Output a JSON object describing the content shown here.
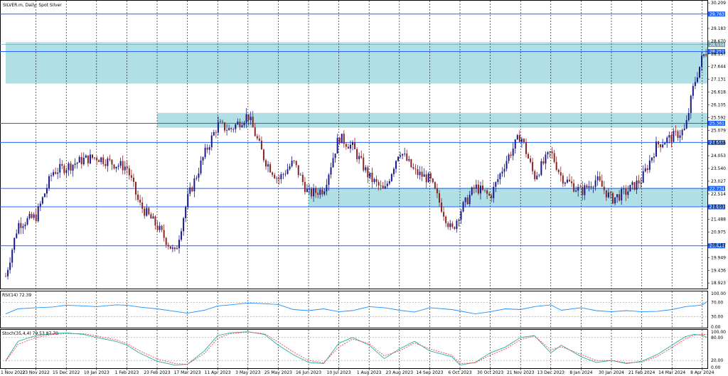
{
  "window": {
    "title": "SILVER.m, Daily:  Spot Silver"
  },
  "colors": {
    "zone": "#b0dfe6",
    "level": "#1e64ff",
    "bull": "#1a1a8c",
    "bear": "#8b2323",
    "rsi": "#1e90ff",
    "stoch_main": "#20b2aa",
    "stoch_signal": "#ff4040",
    "grid": "#000000"
  },
  "chart_data": [
    {
      "type": "candlestick",
      "title": "SILVER.m, Daily:  Spot Silver",
      "x_ticks": [
        "1 Nov 2022",
        "23 Nov 2022",
        "15 Dec 2022",
        "10 Jan 2023",
        "1 Feb 2023",
        "23 Feb 2023",
        "17 Mar 2023",
        "11 Apr 2023",
        "3 May 2023",
        "25 May 2023",
        "16 Jun 2023",
        "10 Jul 2023",
        "1 Aug 2023",
        "23 Aug 2023",
        "14 Sep 2023",
        "6 Oct 2023",
        "30 Oct 2023",
        "21 Nov 2023",
        "13 Dec 2023",
        "8 Jan 2024",
        "30 Jan 2024",
        "21 Feb 2024",
        "14 Mar 2024",
        "8 Apr 2024"
      ],
      "y_ticks": [
        30.209,
        29.183,
        28.67,
        28.157,
        27.644,
        27.131,
        26.618,
        26.105,
        25.592,
        25.079,
        24.566,
        24.053,
        23.54,
        23.027,
        22.514,
        22.001,
        21.488,
        20.975,
        20.462,
        19.949,
        19.436,
        18.923
      ],
      "ylim": [
        18.7,
        30.3
      ],
      "levels": [
        {
          "value": 29.763,
          "label": "29.763"
        },
        {
          "value": 28.251,
          "label": "28.251"
        },
        {
          "value": 25.361,
          "label": "25.361"
        },
        {
          "value": 24.588,
          "label": "24.588"
        },
        {
          "value": 22.734,
          "label": "22.734"
        },
        {
          "value": 21.993,
          "label": "21.993"
        },
        {
          "value": 20.424,
          "label": "20.424"
        }
      ],
      "current_price": {
        "value": 28.534,
        "label": "28.534"
      },
      "zones": [
        {
          "from_date": "1 Nov 2022",
          "top": 28.63,
          "bottom": 26.96
        },
        {
          "from_date": "23 Feb 2023",
          "top": 25.78,
          "bottom": 25.18
        },
        {
          "from_date": "16 Jun 2023",
          "top": 22.76,
          "bottom": 22.0
        }
      ],
      "close_path": [
        {
          "date": "1 Nov 2022",
          "close": 19.2
        },
        {
          "date": "10 Nov 2022",
          "close": 21.3
        },
        {
          "date": "23 Nov 2022",
          "close": 21.6
        },
        {
          "date": "5 Dec 2022",
          "close": 23.4
        },
        {
          "date": "15 Dec 2022",
          "close": 23.6
        },
        {
          "date": "30 Dec 2022",
          "close": 23.9
        },
        {
          "date": "10 Jan 2023",
          "close": 24.0
        },
        {
          "date": "24 Jan 2023",
          "close": 23.7
        },
        {
          "date": "1 Feb 2023",
          "close": 23.6
        },
        {
          "date": "10 Feb 2023",
          "close": 22.1
        },
        {
          "date": "23 Feb 2023",
          "close": 21.2
        },
        {
          "date": "8 Mar 2023",
          "close": 20.1
        },
        {
          "date": "17 Mar 2023",
          "close": 22.3
        },
        {
          "date": "31 Mar 2023",
          "close": 24.1
        },
        {
          "date": "11 Apr 2023",
          "close": 25.3
        },
        {
          "date": "20 Apr 2023",
          "close": 25.1
        },
        {
          "date": "3 May 2023",
          "close": 25.7
        },
        {
          "date": "15 May 2023",
          "close": 23.9
        },
        {
          "date": "25 May 2023",
          "close": 23.1
        },
        {
          "date": "5 Jun 2023",
          "close": 23.8
        },
        {
          "date": "16 Jun 2023",
          "close": 22.5
        },
        {
          "date": "28 Jun 2023",
          "close": 22.7
        },
        {
          "date": "10 Jul 2023",
          "close": 24.8
        },
        {
          "date": "20 Jul 2023",
          "close": 24.4
        },
        {
          "date": "1 Aug 2023",
          "close": 23.2
        },
        {
          "date": "12 Aug 2023",
          "close": 22.6
        },
        {
          "date": "23 Aug 2023",
          "close": 24.3
        },
        {
          "date": "3 Sep 2023",
          "close": 23.4
        },
        {
          "date": "14 Sep 2023",
          "close": 23.1
        },
        {
          "date": "30 Sep 2023",
          "close": 21.0
        },
        {
          "date": "6 Oct 2023",
          "close": 21.8
        },
        {
          "date": "18 Oct 2023",
          "close": 22.8
        },
        {
          "date": "30 Oct 2023",
          "close": 22.4
        },
        {
          "date": "10 Nov 2023",
          "close": 23.8
        },
        {
          "date": "21 Nov 2023",
          "close": 24.9
        },
        {
          "date": "1 Dec 2023",
          "close": 23.2
        },
        {
          "date": "13 Dec 2023",
          "close": 24.2
        },
        {
          "date": "22 Dec 2023",
          "close": 23.2
        },
        {
          "date": "8 Jan 2024",
          "close": 22.6
        },
        {
          "date": "19 Jan 2024",
          "close": 23.1
        },
        {
          "date": "30 Jan 2024",
          "close": 22.3
        },
        {
          "date": "10 Feb 2024",
          "close": 22.6
        },
        {
          "date": "21 Feb 2024",
          "close": 23.1
        },
        {
          "date": "3 Mar 2024",
          "close": 24.5
        },
        {
          "date": "14 Mar 2024",
          "close": 24.8
        },
        {
          "date": "25 Mar 2024",
          "close": 25.1
        },
        {
          "date": "1 Apr 2024",
          "close": 26.9
        },
        {
          "date": "8 Apr 2024",
          "close": 28.0
        },
        {
          "date": "12 Apr 2024",
          "close": 28.3
        }
      ]
    },
    {
      "type": "line",
      "title": "RSI(14) 72.39",
      "ylim": [
        0,
        100
      ],
      "y_ticks": [
        100.0,
        70.0,
        30.0,
        0.0
      ],
      "levels": [
        70,
        30
      ],
      "series": [
        {
          "values": [
            38,
            52,
            55,
            57,
            62,
            60,
            58,
            63,
            62,
            57,
            52,
            45,
            40,
            48,
            60,
            63,
            68,
            66,
            64,
            50,
            47,
            52,
            44,
            47,
            58,
            55,
            48,
            43,
            55,
            50,
            46,
            38,
            44,
            52,
            50,
            58,
            63,
            48,
            55,
            47,
            44,
            47,
            44,
            45,
            50,
            58,
            60,
            63,
            72
          ]
        }
      ]
    },
    {
      "type": "line",
      "title": "Stoch(35,4,4) 79.53 87.70",
      "ylim": [
        0,
        100
      ],
      "y_ticks": [
        100.0,
        80.0,
        20.0,
        0.0
      ],
      "levels": [
        80,
        20
      ],
      "series": [
        {
          "values": [
            20,
            70,
            85,
            90,
            92,
            88,
            80,
            70,
            60,
            40,
            18,
            8,
            10,
            45,
            85,
            92,
            95,
            88,
            60,
            35,
            15,
            12,
            65,
            80,
            60,
            25,
            50,
            70,
            45,
            30,
            8,
            15,
            40,
            55,
            80,
            85,
            40,
            60,
            30,
            15,
            20,
            12,
            18,
            35,
            60,
            82,
            88,
            86,
            80
          ]
        },
        {
          "values": [
            18,
            62,
            80,
            88,
            90,
            90,
            84,
            74,
            64,
            46,
            24,
            12,
            10,
            38,
            78,
            90,
            94,
            90,
            68,
            42,
            20,
            14,
            55,
            76,
            64,
            32,
            45,
            66,
            50,
            34,
            12,
            14,
            34,
            50,
            74,
            84,
            48,
            56,
            36,
            20,
            20,
            14,
            16,
            30,
            54,
            76,
            86,
            88,
            88
          ]
        }
      ]
    }
  ]
}
